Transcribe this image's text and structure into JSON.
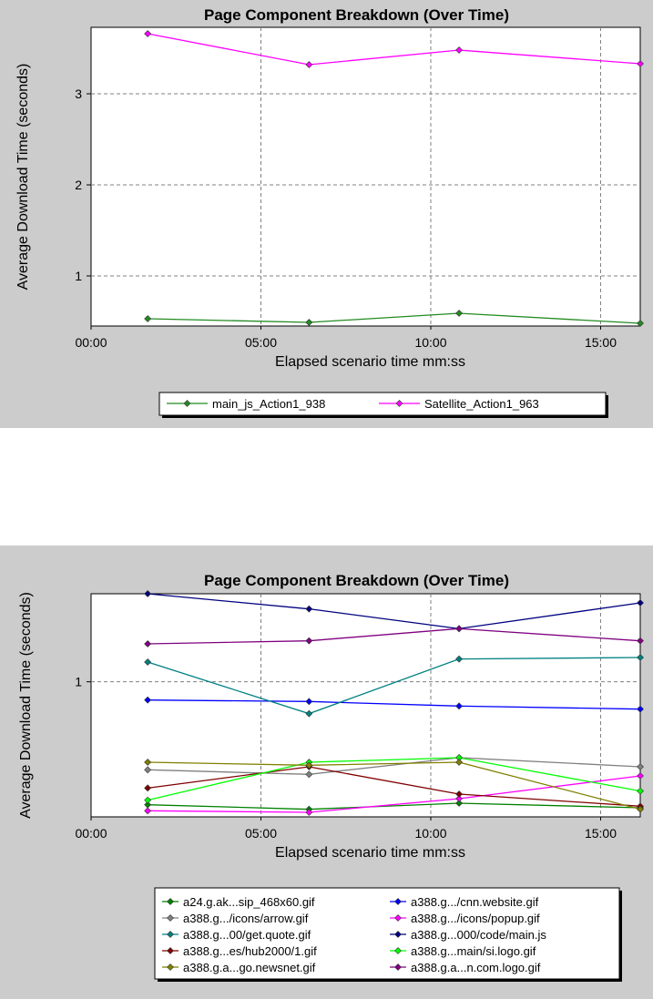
{
  "chart_data": [
    {
      "type": "line",
      "title": "Page Component Breakdown (Over Time)",
      "xlabel": "Elapsed scenario time mm:ss",
      "ylabel": "Average Download Time (seconds)",
      "x_ticks": [
        "00:00",
        "05:00",
        "10:00",
        "15:00"
      ],
      "y_ticks": [
        "1",
        "2",
        "3"
      ],
      "xlim": [
        0,
        970
      ],
      "ylim": [
        0.45,
        3.73
      ],
      "x": [
        100,
        385,
        650,
        970
      ],
      "grid": true,
      "legend_position": "bottom",
      "series": [
        {
          "name": "main_js_Action1_938",
          "color": "#228b22",
          "values": [
            0.53,
            0.49,
            0.59,
            0.48
          ]
        },
        {
          "name": "Satellite_Action1_963",
          "color": "#ff00ff",
          "values": [
            3.66,
            3.32,
            3.48,
            3.33
          ]
        }
      ]
    },
    {
      "type": "line",
      "title": "Page Component Breakdown (Over Time)",
      "xlabel": "Elapsed scenario time mm:ss",
      "ylabel": "Average Download Time (seconds)",
      "x_ticks": [
        "00:00",
        "05:00",
        "10:00",
        "15:00"
      ],
      "y_ticks": [
        "1"
      ],
      "xlim": [
        0,
        970
      ],
      "ylim": [
        0.11,
        1.58
      ],
      "x": [
        100,
        385,
        650,
        970
      ],
      "grid": true,
      "legend_position": "bottom",
      "series": [
        {
          "name": "a24.g.ak...sip_468x60.gif",
          "color": "#008000",
          "values": [
            0.19,
            0.16,
            0.2,
            0.17
          ]
        },
        {
          "name": "a388.g.../cnn.website.gif",
          "color": "#0000ff",
          "values": [
            0.88,
            0.87,
            0.84,
            0.82
          ]
        },
        {
          "name": "a388.g.../icons/arrow.gif",
          "color": "#808080",
          "values": [
            0.42,
            0.39,
            0.5,
            0.44
          ]
        },
        {
          "name": "a388.g.../icons/popup.gif",
          "color": "#ff00ff",
          "values": [
            0.15,
            0.14,
            0.23,
            0.38
          ]
        },
        {
          "name": "a388.g...00/get.quote.gif",
          "color": "#008080",
          "values": [
            1.13,
            0.79,
            1.15,
            1.16
          ]
        },
        {
          "name": "a388.g...000/code/main.js",
          "color": "#000080",
          "values": [
            1.58,
            1.48,
            1.35,
            1.52
          ]
        },
        {
          "name": "a388.g...es/hub2000/1.gif",
          "color": "#800000",
          "values": [
            0.3,
            0.44,
            0.26,
            0.18
          ]
        },
        {
          "name": "a388.g...main/si.logo.gif",
          "color": "#00ff00",
          "values": [
            0.22,
            0.47,
            0.5,
            0.28
          ]
        },
        {
          "name": "a388.g.a...go.newsnet.gif",
          "color": "#808000",
          "values": [
            0.47,
            0.45,
            0.47,
            0.16
          ]
        },
        {
          "name": "a388.g.a...n.com.logo.gif",
          "color": "#800080",
          "values": [
            1.25,
            1.27,
            1.35,
            1.27
          ]
        }
      ]
    }
  ]
}
